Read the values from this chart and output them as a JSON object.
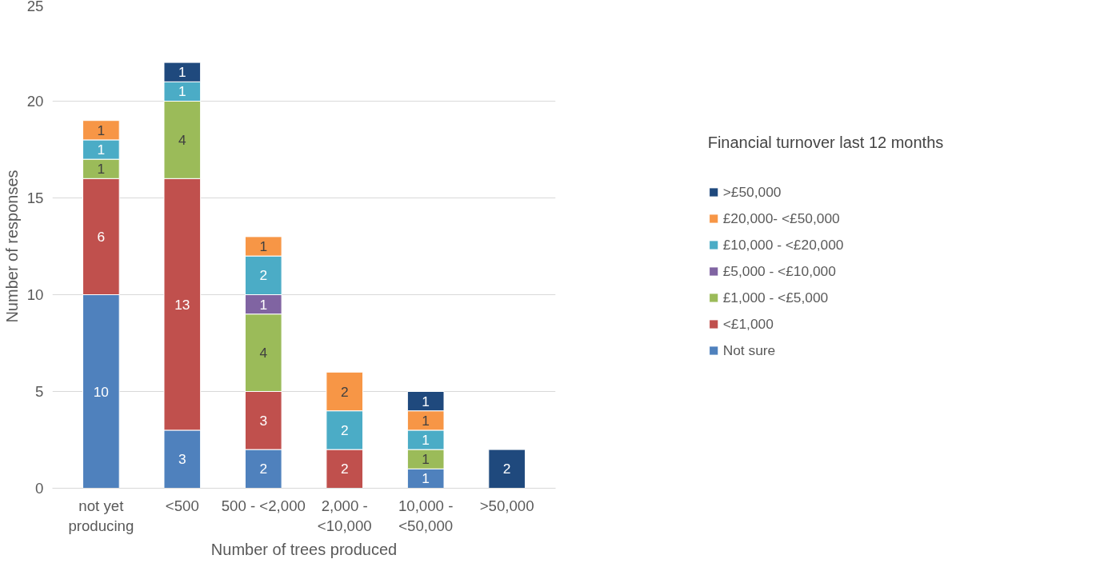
{
  "chart_data": {
    "type": "bar",
    "stacked": true,
    "xlabel": "Number of trees produced",
    "ylabel": "Number of responses",
    "legend_title": "Financial turnover last 12 months",
    "categories": [
      "not yet\nproducing",
      "<500",
      "500 - <2,000",
      "2,000 -\n<10,000",
      "10,000 -\n<50,000",
      ">50,000"
    ],
    "series": [
      {
        "name": "Not sure",
        "color": "#4f81bd",
        "values": [
          10,
          3,
          2,
          null,
          1,
          null
        ]
      },
      {
        "name": "<£1,000",
        "color": "#c0504d",
        "values": [
          6,
          13,
          3,
          2,
          null,
          null
        ]
      },
      {
        "name": "£1,000 - <£5,000",
        "color": "#9bbb59",
        "values": [
          1,
          4,
          4,
          null,
          1,
          null
        ]
      },
      {
        "name": "£5,000 - <£10,000",
        "color": "#8064a2",
        "values": [
          null,
          null,
          1,
          null,
          null,
          null
        ]
      },
      {
        "name": "£10,000 - <£20,000",
        "color": "#4bacc6",
        "values": [
          1,
          1,
          2,
          2,
          1,
          null
        ]
      },
      {
        "name": "£20,000- <£50,000",
        "color": "#f79646",
        "values": [
          1,
          null,
          1,
          2,
          1,
          null
        ]
      },
      {
        "name": ">£50,000",
        "color": "#1f497d",
        "values": [
          null,
          1,
          null,
          null,
          1,
          2
        ]
      }
    ],
    "ylim": [
      0,
      25
    ],
    "yticks": [
      0,
      5,
      10,
      15,
      20,
      25
    ],
    "grid": "y",
    "legend": "right",
    "data_labels": true
  }
}
